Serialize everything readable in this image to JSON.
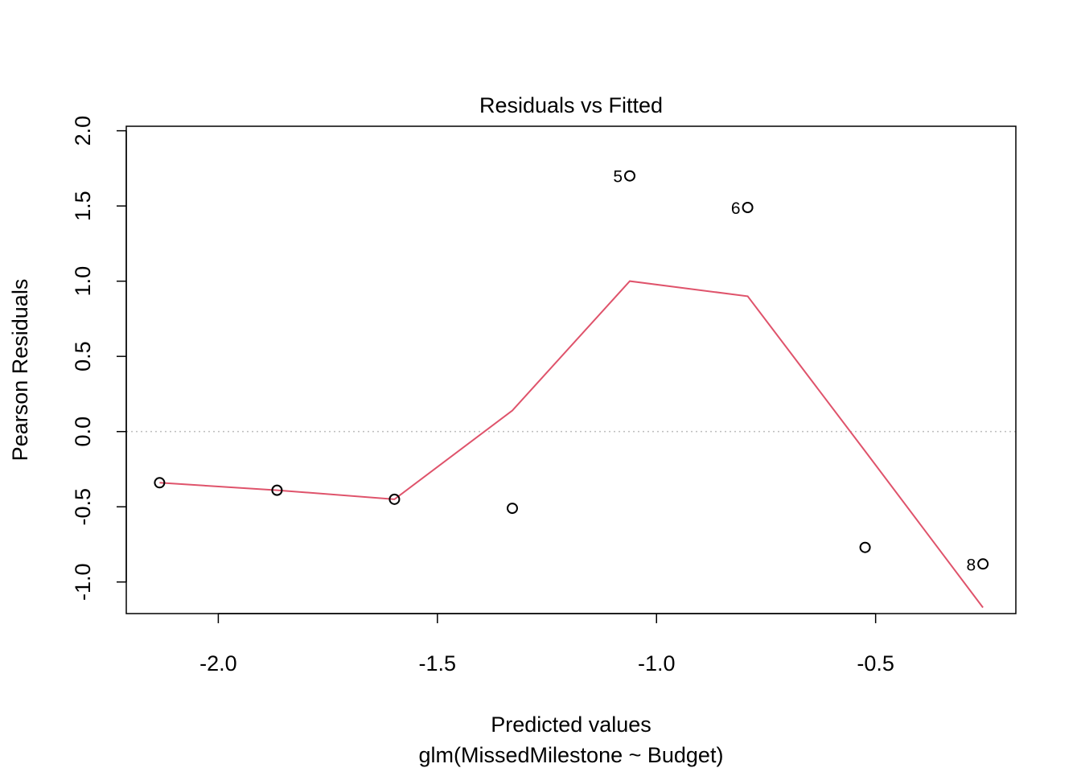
{
  "chart_data": {
    "type": "scatter",
    "title": "Residuals vs Fitted",
    "xlabel": "Predicted values",
    "subtitle": "glm(MissedMilestone ~ Budget)",
    "ylabel": "Pearson Residuals",
    "xlim": [
      -2.21,
      -0.18
    ],
    "ylim": [
      -1.21,
      2.03
    ],
    "x_ticks": [
      -2.0,
      -1.5,
      -1.0,
      -0.5
    ],
    "x_tick_labels": [
      "-2.0",
      "-1.5",
      "-1.0",
      "-0.5"
    ],
    "y_ticks": [
      -1.0,
      -0.5,
      0.0,
      0.5,
      1.0,
      1.5,
      2.0
    ],
    "y_tick_labels": [
      "-1.0",
      "-0.5",
      "0.0",
      "0.5",
      "1.0",
      "1.5",
      "2.0"
    ],
    "points": [
      {
        "x": -2.134,
        "y": -0.34,
        "label": ""
      },
      {
        "x": -1.866,
        "y": -0.39,
        "label": ""
      },
      {
        "x": -1.598,
        "y": -0.45,
        "label": ""
      },
      {
        "x": -1.329,
        "y": -0.51,
        "label": ""
      },
      {
        "x": -1.061,
        "y": 1.7,
        "label": "5"
      },
      {
        "x": -0.792,
        "y": 1.49,
        "label": "6"
      },
      {
        "x": -0.524,
        "y": -0.77,
        "label": ""
      },
      {
        "x": -0.255,
        "y": -0.88,
        "label": "8"
      }
    ],
    "smooth_line": {
      "color": "#DF536B",
      "x": [
        -2.134,
        -1.866,
        -1.598,
        -1.329,
        -1.061,
        -0.792,
        -0.524,
        -0.255
      ],
      "y": [
        -0.34,
        -0.39,
        -0.45,
        0.14,
        1.0,
        0.9,
        -0.13,
        -1.17
      ]
    },
    "reference_line": {
      "y": 0,
      "color": "#BEBEBE",
      "style": "dotted"
    },
    "grid": false
  }
}
